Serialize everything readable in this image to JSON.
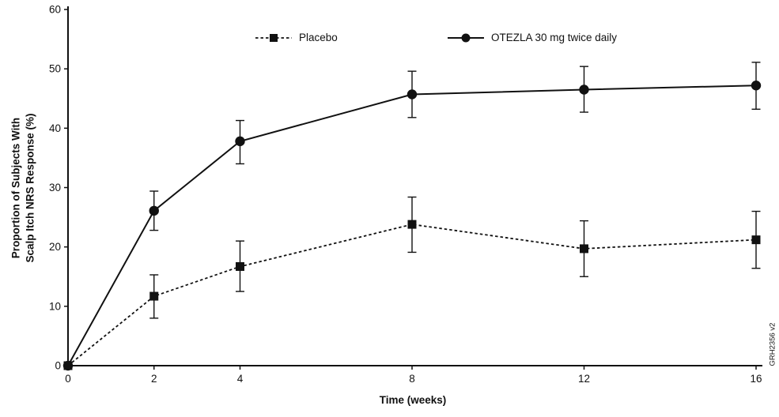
{
  "chart_data": {
    "type": "line",
    "x": [
      0,
      2,
      4,
      8,
      12,
      16
    ],
    "xticks": [
      0,
      2,
      4,
      8,
      12,
      16
    ],
    "yticks": [
      0,
      10,
      20,
      30,
      40,
      50,
      60
    ],
    "xlim": [
      0,
      16
    ],
    "ylim": [
      0,
      60
    ],
    "xlabel": "Time (weeks)",
    "ylabel": "Proportion of Subjects With\nScalp Itch NRS Response (%)",
    "grid": false,
    "legend_position": "top-inside",
    "axis_color": "#111111",
    "background": "#ffffff",
    "watermark": "GRH2356 v2",
    "series": [
      {
        "name": "Placebo",
        "marker": "square",
        "line": "dashed",
        "color": "#111111",
        "values": [
          0,
          11.7,
          16.7,
          23.8,
          19.7,
          21.2
        ],
        "err_low": [
          null,
          8.0,
          12.5,
          19.1,
          15.0,
          16.4
        ],
        "err_high": [
          null,
          15.3,
          21.0,
          28.4,
          24.4,
          26.0
        ]
      },
      {
        "name": "OTEZLA 30 mg twice daily",
        "marker": "circle",
        "line": "solid",
        "color": "#111111",
        "values": [
          0,
          26.1,
          37.8,
          45.7,
          46.5,
          47.2
        ],
        "err_low": [
          null,
          22.8,
          34.0,
          41.8,
          42.7,
          43.2
        ],
        "err_high": [
          null,
          29.4,
          41.3,
          49.6,
          50.4,
          51.1
        ]
      }
    ]
  }
}
